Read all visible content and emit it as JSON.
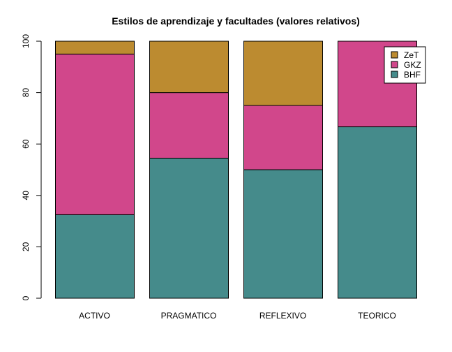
{
  "chart_data": {
    "type": "bar",
    "stacked": true,
    "title": "Estilos de aprendizaje y facultades (valores relativos)",
    "xlabel": "",
    "ylabel": "",
    "categories": [
      "ACTIVO",
      "PRAGMATICO",
      "REFLEXIVO",
      "TEORICO"
    ],
    "series": [
      {
        "name": "BHF",
        "color": "#458b8b",
        "values": [
          32.5,
          54.5,
          50,
          66.7
        ]
      },
      {
        "name": "GKZ",
        "color": "#d1478b",
        "values": [
          62.5,
          25.5,
          25,
          33.3
        ]
      },
      {
        "name": "ZeT",
        "color": "#bc8b30",
        "values": [
          5,
          20,
          25,
          0
        ]
      }
    ],
    "ylim": [
      0,
      100
    ],
    "yticks": [
      "0",
      "20",
      "40",
      "60",
      "80",
      "100"
    ],
    "legend": {
      "position": "top-right",
      "order": [
        "ZeT",
        "GKZ",
        "BHF"
      ]
    },
    "grid": false
  }
}
